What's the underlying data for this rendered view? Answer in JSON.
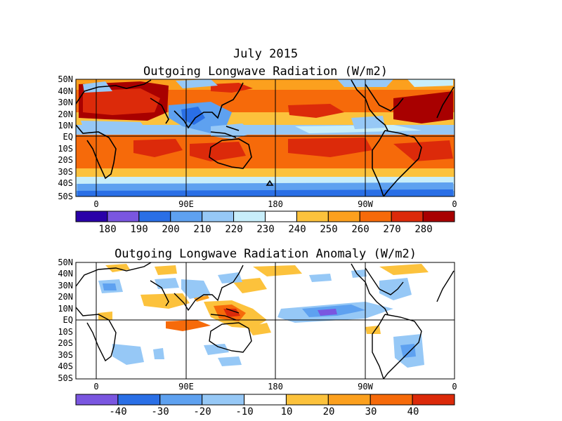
{
  "top_panel": {
    "title_line1": "July 2015",
    "title_line2": "Outgoing Longwave Radiation (W/m2)",
    "lat_labels": [
      "50N",
      "40N",
      "30N",
      "20N",
      "10N",
      "EQ",
      "10S",
      "20S",
      "30S",
      "40S",
      "50S"
    ],
    "lon_labels": [
      "0",
      "90E",
      "180",
      "90W",
      "0"
    ],
    "colorbar": {
      "labels": [
        "180",
        "190",
        "200",
        "210",
        "220",
        "230",
        "240",
        "250",
        "260",
        "270",
        "280"
      ],
      "colors": [
        "#2a00a8",
        "#7a56e0",
        "#2a6fe6",
        "#5ea1f0",
        "#96c8f6",
        "#c8eefa",
        "#ffffff",
        "#fcc23c",
        "#fca01e",
        "#f66a0a",
        "#dc2a0a",
        "#a80000"
      ]
    },
    "colors": {
      "low": "#96c8f6",
      "mid": "#fca01e",
      "high": "#c01a06"
    }
  },
  "bottom_panel": {
    "title": "Outgoing Longwave Radiation Anomaly (W/m2)",
    "lat_labels": [
      "50N",
      "40N",
      "30N",
      "20N",
      "10N",
      "EQ",
      "10S",
      "20S",
      "30S",
      "40S",
      "50S"
    ],
    "lon_labels": [
      "0",
      "90E",
      "180",
      "90W",
      "0"
    ],
    "colorbar": {
      "labels": [
        "-40",
        "-30",
        "-20",
        "-10",
        "10",
        "20",
        "30",
        "40"
      ],
      "colors": [
        "#7a56e0",
        "#2a6fe6",
        "#5ea1f0",
        "#96c8f6",
        "#ffffff",
        "#fcc23c",
        "#fca01e",
        "#f66a0a",
        "#dc2a0a"
      ]
    },
    "colors": {
      "neg": "#5ea1f0",
      "pos": "#fca01e"
    }
  }
}
